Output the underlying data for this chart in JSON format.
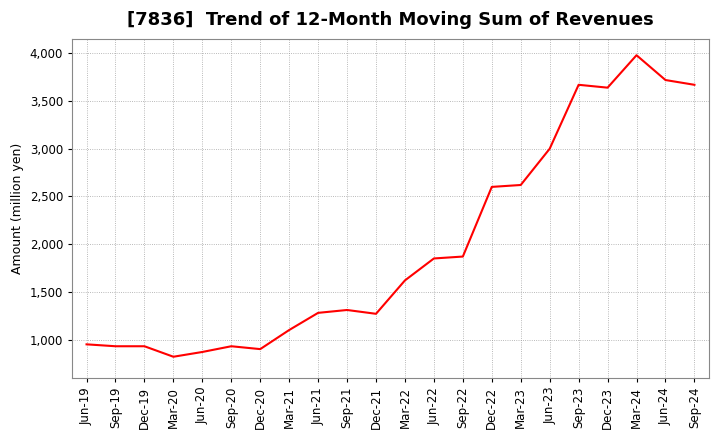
{
  "title": "[7836]  Trend of 12-Month Moving Sum of Revenues",
  "ylabel": "Amount (million yen)",
  "line_color": "#FF0000",
  "line_width": 1.5,
  "background_color": "#FFFFFF",
  "plot_bg_color": "#FFFFFF",
  "grid_color": "#999999",
  "ylim": [
    600,
    4150
  ],
  "yticks": [
    1000,
    1500,
    2000,
    2500,
    3000,
    3500,
    4000
  ],
  "labels": [
    "Jun-19",
    "Sep-19",
    "Dec-19",
    "Mar-20",
    "Jun-20",
    "Sep-20",
    "Dec-20",
    "Mar-21",
    "Jun-21",
    "Sep-21",
    "Dec-21",
    "Mar-22",
    "Jun-22",
    "Sep-22",
    "Dec-22",
    "Mar-23",
    "Jun-23",
    "Sep-23",
    "Dec-23",
    "Mar-24",
    "Jun-24",
    "Sep-24"
  ],
  "values": [
    950,
    930,
    930,
    820,
    870,
    930,
    900,
    1100,
    1280,
    1310,
    1270,
    1620,
    1850,
    1870,
    2600,
    2620,
    3000,
    3670,
    3640,
    3980,
    3720,
    3670
  ],
  "title_fontsize": 13,
  "label_fontsize": 9,
  "tick_fontsize": 8.5
}
